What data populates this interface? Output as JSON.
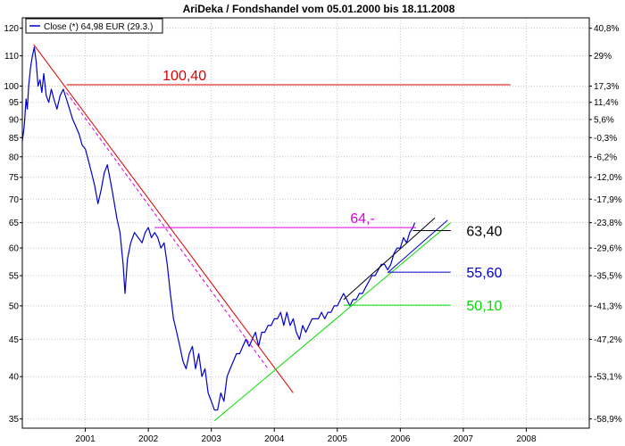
{
  "chart_data": {
    "type": "line",
    "title": "AriDeka / Fondshandel vom 05.01.2000  bis 18.11.2008",
    "legend": {
      "label": "Close (*) 64,98 EUR (29.3.)",
      "placement": "top-left",
      "color": "#0000cc"
    },
    "y_scale": "log",
    "ylim": [
      34,
      124
    ],
    "xlim": [
      2000.0,
      2009.0
    ],
    "grid": true,
    "left_ticks": [
      "35",
      "40",
      "45",
      "50",
      "55",
      "60",
      "65",
      "70",
      "75",
      "80",
      "85",
      "90",
      "95",
      "100",
      "110",
      "120"
    ],
    "left_tick_values": [
      35,
      40,
      45,
      50,
      55,
      60,
      65,
      70,
      75,
      80,
      85,
      90,
      95,
      100,
      110,
      120
    ],
    "right_ticks": [
      "40,8%",
      "29%",
      "17,3%",
      "11,4%",
      "5,6%",
      "-0,3%",
      "-6,2%",
      "-12,0%",
      "-17,9%",
      "-23,8%",
      "-29,6%",
      "-35,5%",
      "-41,3%",
      "-47,2%",
      "-53,1%",
      "-58,9%"
    ],
    "right_tick_values": [
      120,
      110,
      100,
      95,
      90,
      85,
      80,
      75,
      70,
      65,
      60,
      55,
      50,
      45,
      40,
      35
    ],
    "x_ticks": [
      "2001",
      "2002",
      "2003",
      "2004",
      "2005",
      "2006",
      "2007",
      "2008"
    ],
    "x_tick_values": [
      2001,
      2002,
      2003,
      2004,
      2005,
      2006,
      2007,
      2008
    ],
    "series": [
      {
        "color": "#0000cc",
        "points": [
          [
            2000.0,
            84
          ],
          [
            2000.03,
            88
          ],
          [
            2000.06,
            96
          ],
          [
            2000.08,
            93
          ],
          [
            2000.1,
            100
          ],
          [
            2000.13,
            106
          ],
          [
            2000.16,
            110
          ],
          [
            2000.19,
            113
          ],
          [
            2000.22,
            108
          ],
          [
            2000.25,
            100
          ],
          [
            2000.28,
            102
          ],
          [
            2000.31,
            98
          ],
          [
            2000.34,
            104
          ],
          [
            2000.38,
            97
          ],
          [
            2000.42,
            95
          ],
          [
            2000.46,
            99
          ],
          [
            2000.5,
            96
          ],
          [
            2000.55,
            93
          ],
          [
            2000.6,
            97
          ],
          [
            2000.65,
            99
          ],
          [
            2000.7,
            96
          ],
          [
            2000.75,
            93
          ],
          [
            2000.8,
            90
          ],
          [
            2000.85,
            88
          ],
          [
            2000.9,
            86
          ],
          [
            2000.95,
            83
          ],
          [
            2001.0,
            82
          ],
          [
            2001.05,
            79
          ],
          [
            2001.1,
            76
          ],
          [
            2001.15,
            73
          ],
          [
            2001.2,
            69
          ],
          [
            2001.25,
            72
          ],
          [
            2001.3,
            76
          ],
          [
            2001.35,
            78
          ],
          [
            2001.4,
            74
          ],
          [
            2001.45,
            70
          ],
          [
            2001.5,
            66
          ],
          [
            2001.55,
            63
          ],
          [
            2001.6,
            57
          ],
          [
            2001.63,
            52
          ],
          [
            2001.67,
            58
          ],
          [
            2001.72,
            61
          ],
          [
            2001.78,
            63
          ],
          [
            2001.84,
            62
          ],
          [
            2001.9,
            61
          ],
          [
            2001.95,
            63
          ],
          [
            2002.0,
            64
          ],
          [
            2002.05,
            62
          ],
          [
            2002.1,
            63
          ],
          [
            2002.15,
            62
          ],
          [
            2002.2,
            60
          ],
          [
            2002.25,
            61
          ],
          [
            2002.3,
            57
          ],
          [
            2002.35,
            52
          ],
          [
            2002.4,
            48
          ],
          [
            2002.45,
            46
          ],
          [
            2002.5,
            44
          ],
          [
            2002.55,
            42
          ],
          [
            2002.6,
            41
          ],
          [
            2002.65,
            43
          ],
          [
            2002.7,
            44
          ],
          [
            2002.75,
            41
          ],
          [
            2002.8,
            43
          ],
          [
            2002.85,
            40
          ],
          [
            2002.9,
            41
          ],
          [
            2002.95,
            38
          ],
          [
            2003.0,
            37
          ],
          [
            2003.05,
            36
          ],
          [
            2003.1,
            36
          ],
          [
            2003.15,
            38
          ],
          [
            2003.2,
            37
          ],
          [
            2003.25,
            40
          ],
          [
            2003.3,
            41
          ],
          [
            2003.35,
            42
          ],
          [
            2003.4,
            43
          ],
          [
            2003.45,
            43
          ],
          [
            2003.5,
            44
          ],
          [
            2003.55,
            45
          ],
          [
            2003.6,
            44
          ],
          [
            2003.65,
            45
          ],
          [
            2003.7,
            46
          ],
          [
            2003.75,
            44
          ],
          [
            2003.8,
            46
          ],
          [
            2003.85,
            46
          ],
          [
            2003.9,
            47
          ],
          [
            2003.95,
            47
          ],
          [
            2004.0,
            48
          ],
          [
            2004.05,
            48
          ],
          [
            2004.1,
            49
          ],
          [
            2004.15,
            47
          ],
          [
            2004.2,
            49
          ],
          [
            2004.25,
            47
          ],
          [
            2004.3,
            48
          ],
          [
            2004.35,
            46
          ],
          [
            2004.4,
            45
          ],
          [
            2004.45,
            47
          ],
          [
            2004.5,
            46
          ],
          [
            2004.55,
            47
          ],
          [
            2004.6,
            48
          ],
          [
            2004.65,
            48
          ],
          [
            2004.7,
            48
          ],
          [
            2004.75,
            49
          ],
          [
            2004.8,
            48
          ],
          [
            2004.85,
            49
          ],
          [
            2004.9,
            49
          ],
          [
            2004.95,
            50
          ],
          [
            2005.0,
            50
          ],
          [
            2005.05,
            51
          ],
          [
            2005.1,
            52
          ],
          [
            2005.15,
            51
          ],
          [
            2005.2,
            50
          ],
          [
            2005.25,
            51
          ],
          [
            2005.3,
            51
          ],
          [
            2005.35,
            52
          ],
          [
            2005.4,
            52
          ],
          [
            2005.45,
            53
          ],
          [
            2005.5,
            54
          ],
          [
            2005.55,
            55
          ],
          [
            2005.6,
            55
          ],
          [
            2005.65,
            56
          ],
          [
            2005.7,
            57
          ],
          [
            2005.75,
            57
          ],
          [
            2005.8,
            56
          ],
          [
            2005.85,
            57
          ],
          [
            2005.9,
            59
          ],
          [
            2005.95,
            60
          ],
          [
            2006.0,
            60
          ],
          [
            2006.05,
            62
          ],
          [
            2006.1,
            61
          ],
          [
            2006.15,
            63
          ],
          [
            2006.2,
            64
          ],
          [
            2006.23,
            64.98
          ]
        ]
      }
    ],
    "trendlines": [
      {
        "color": "#dd0000",
        "style": "solid",
        "from": [
          2000.18,
          114
        ],
        "to": [
          2004.3,
          38
        ]
      },
      {
        "color": "#dd00dd",
        "style": "dashed",
        "from": [
          2000.7,
          98
        ],
        "to": [
          2003.9,
          41
        ]
      },
      {
        "color": "#00dd00",
        "style": "solid",
        "from": [
          2003.05,
          34.8
        ],
        "to": [
          2006.8,
          65
        ]
      },
      {
        "color": "#0000cc",
        "style": "solid",
        "from": [
          2005.8,
          55.5
        ],
        "to": [
          2006.75,
          65.5
        ]
      },
      {
        "color": "#000000",
        "style": "solid",
        "from": [
          2005.1,
          51
        ],
        "to": [
          2006.55,
          66
        ]
      }
    ],
    "horizontal_levels": [
      {
        "value": 100.4,
        "x_from": 2000.7,
        "x_to": 2007.75,
        "color": "#dd0000",
        "label": "100,40"
      },
      {
        "value": 64.0,
        "x_from": 2002.1,
        "x_to": 2006.25,
        "color": "#dd00dd",
        "label": "64,-"
      },
      {
        "value": 63.4,
        "x_from": 2006.2,
        "x_to": 2006.8,
        "color": "#000000",
        "label": "63,40"
      },
      {
        "value": 55.6,
        "x_from": 2005.8,
        "x_to": 2006.8,
        "color": "#0000cc",
        "label": "55,60"
      },
      {
        "value": 50.1,
        "x_from": 2005.1,
        "x_to": 2006.8,
        "color": "#00dd00",
        "label": "50,10"
      }
    ]
  }
}
